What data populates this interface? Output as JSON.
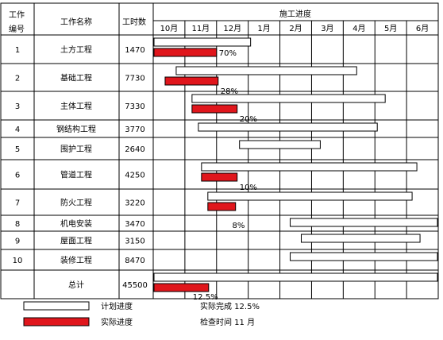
{
  "header": {
    "col_id": [
      "工作",
      "编号"
    ],
    "col_name": "工作名称",
    "col_hours": "工时数",
    "col_progress": "施工进度",
    "months": [
      "10月",
      "11月",
      "12月",
      "1月",
      "2月",
      "3月",
      "4月",
      "5月",
      "6月"
    ]
  },
  "rows": [
    {
      "id": "1",
      "name": "土方工程",
      "hours": "1470",
      "plan": [
        0.0,
        3.1
      ],
      "actual": [
        0.0,
        2.0
      ],
      "pct": "70%"
    },
    {
      "id": "2",
      "name": "基础工程",
      "hours": "7730",
      "plan": [
        0.7,
        6.45
      ],
      "actual": [
        0.35,
        2.05
      ],
      "pct": "28%"
    },
    {
      "id": "3",
      "name": "主体工程",
      "hours": "7330",
      "plan": [
        1.2,
        7.35
      ],
      "actual": [
        1.2,
        2.65
      ],
      "pct": "20%"
    },
    {
      "id": "4",
      "name": "钢结构工程",
      "hours": "3770",
      "plan": [
        1.4,
        7.1
      ],
      "actual": null,
      "pct": ""
    },
    {
      "id": "5",
      "name": "围护工程",
      "hours": "2640",
      "plan": [
        2.7,
        5.3
      ],
      "actual": null,
      "pct": ""
    },
    {
      "id": "6",
      "name": "管道工程",
      "hours": "4250",
      "plan": [
        1.5,
        8.35
      ],
      "actual": [
        1.5,
        2.65
      ],
      "pct": "10%"
    },
    {
      "id": "7",
      "name": "防火工程",
      "hours": "3220",
      "plan": [
        1.7,
        8.2
      ],
      "actual": [
        1.7,
        2.6
      ],
      "pct": ""
    },
    {
      "id": "8",
      "name": "机电安装",
      "hours": "3470",
      "plan": [
        4.3,
        9.0
      ],
      "actual": null,
      "pct": "8%"
    },
    {
      "id": "9",
      "name": "屋面工程",
      "hours": "3150",
      "plan": [
        4.65,
        8.45
      ],
      "actual": null,
      "pct": ""
    },
    {
      "id": "10",
      "name": "装修工程",
      "hours": "8470",
      "plan": [
        4.3,
        9.0
      ],
      "actual": null,
      "pct": ""
    }
  ],
  "total": {
    "name": "总计",
    "hours": "45500",
    "plan": [
      0.0,
      9.0
    ],
    "actual": [
      0.0,
      1.75
    ],
    "pct": "12.5%"
  },
  "legend": {
    "plan_label": "计划进度",
    "actual_label": "实际进度",
    "summary_done": "实际完成 12.5%",
    "summary_check": "检查时间 11 月"
  },
  "colors": {
    "actual": "#e0161c",
    "plan": "#ffffff",
    "line": "#000000"
  }
}
